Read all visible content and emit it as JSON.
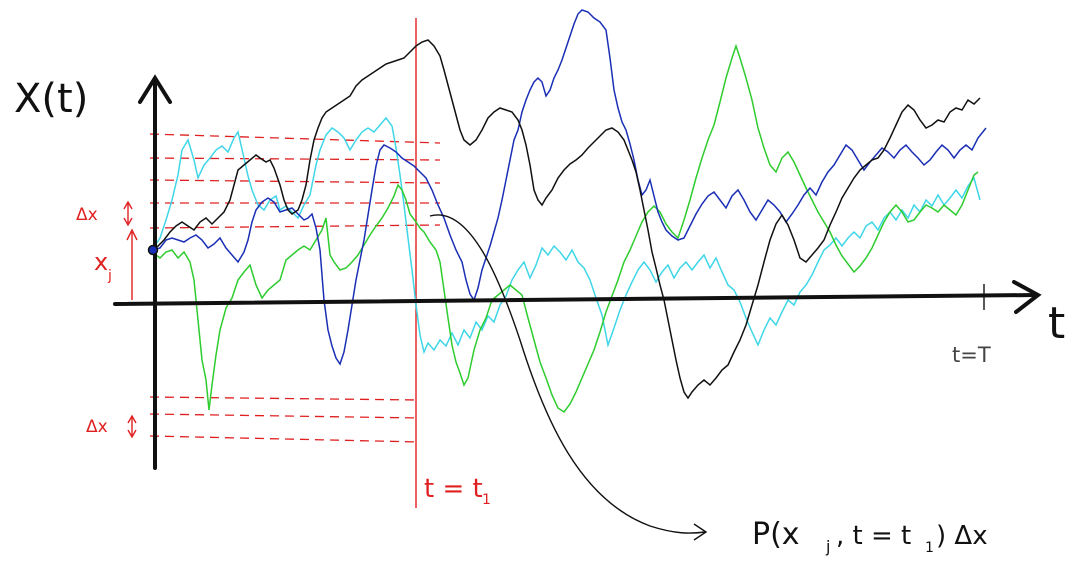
{
  "labels": {
    "y_axis": "X(t)",
    "x_axis": "t",
    "delta_x_upper": "Δx",
    "delta_x_lower": "Δx",
    "x_j": "x",
    "x_j_sub": "j",
    "t_equals_t1": "t = t",
    "t1_sub": "1",
    "t_equals_T": "t=T",
    "probability": "P(x",
    "probability_sub": "j",
    "probability_rest": ", t = t",
    "probability_sub2": "1",
    "probability_end": ") Δx"
  },
  "colors": {
    "axis": "#111111",
    "annotation_red": "#e02020",
    "path_black": "#111111",
    "path_blue": "#1a2fb5",
    "path_green": "#2ecc2e",
    "path_cyan": "#3fd6e8"
  }
}
